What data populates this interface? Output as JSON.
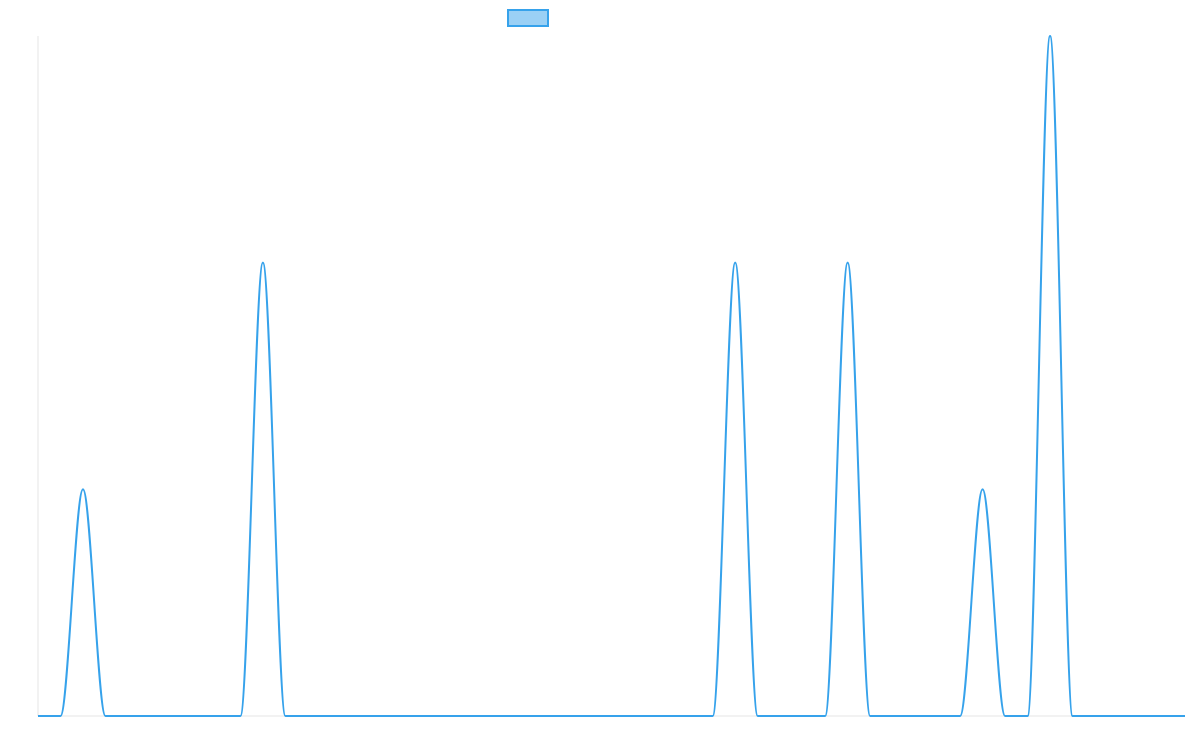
{
  "chart_data": {
    "type": "line",
    "title": "",
    "xlabel": "",
    "ylabel": "",
    "grid": false,
    "legend": {
      "placement": "top-center",
      "entries": [
        {
          "name": "",
          "color": "#36a2eb",
          "fill": "#9ad0f5"
        }
      ]
    },
    "xlim": [
      0,
      51
    ],
    "ylim": [
      0,
      3
    ],
    "series": [
      {
        "name": "",
        "color": "#36a2eb",
        "x": [
          0,
          1,
          2,
          3,
          4,
          5,
          6,
          7,
          8,
          9,
          10,
          11,
          12,
          13,
          14,
          15,
          16,
          17,
          18,
          19,
          20,
          21,
          22,
          23,
          24,
          25,
          26,
          27,
          28,
          29,
          30,
          31,
          32,
          33,
          34,
          35,
          36,
          37,
          38,
          39,
          40,
          41,
          42,
          43,
          44,
          45,
          46,
          47,
          48,
          49,
          50,
          51
        ],
        "y": [
          0,
          0,
          1,
          0,
          0,
          0,
          0,
          0,
          0,
          0,
          2,
          0,
          0,
          0,
          0,
          0,
          0,
          0,
          0,
          0,
          0,
          0,
          0,
          0,
          0,
          0,
          0,
          0,
          0,
          0,
          0,
          2,
          0,
          0,
          0,
          0,
          2,
          0,
          0,
          0,
          0,
          0,
          1,
          0,
          0,
          3,
          0,
          0,
          0,
          0,
          0,
          0
        ]
      }
    ]
  }
}
